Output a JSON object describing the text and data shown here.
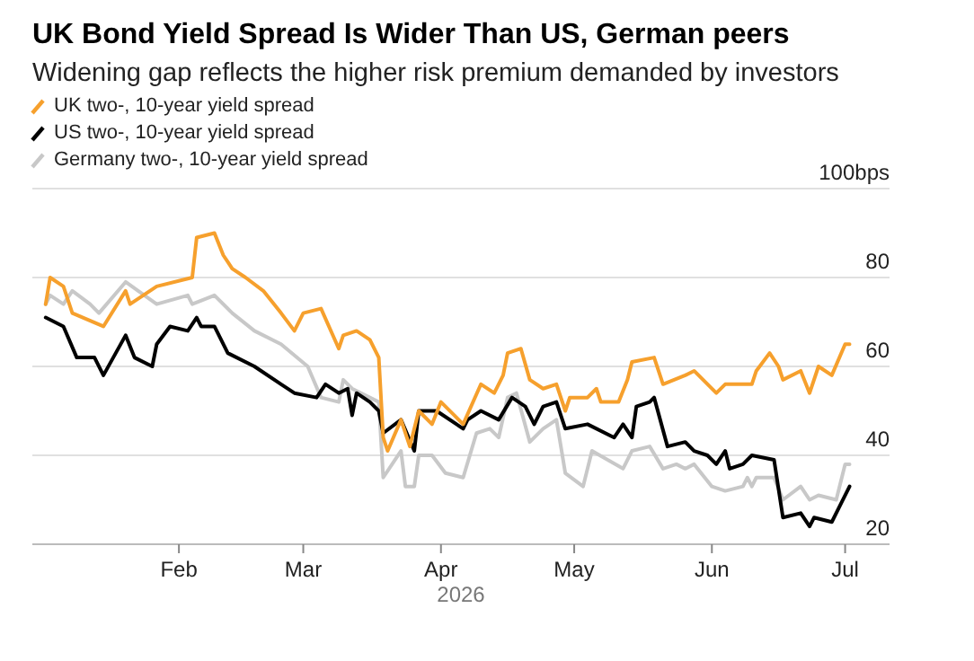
{
  "chart_data": {
    "type": "line",
    "title": "UK Bond Yield Spread Is Wider Than US, German peers",
    "subtitle": "Widening gap reflects the higher risk premium demanded by investors",
    "xlabel": "2026",
    "xlim": [
      "2025-12-30",
      "2026-07-11"
    ],
    "xticks": [
      {
        "value": "2026-02-01",
        "label": "Feb"
      },
      {
        "value": "2026-03-01",
        "label": "Mar"
      },
      {
        "value": "2026-04-01",
        "label": "Apr"
      },
      {
        "value": "2026-05-01",
        "label": "May"
      },
      {
        "value": "2026-06-01",
        "label": "Jun"
      },
      {
        "value": "2026-07-01",
        "label": "Jul"
      }
    ],
    "ylim": [
      20,
      100
    ],
    "yticks": [
      20,
      40,
      60,
      80,
      {
        "value": 100,
        "label": "100bps"
      }
    ],
    "grid": "y",
    "legend": "top left",
    "series": [
      {
        "name": "UK two-, 10-year yield spread",
        "color": "#f6a02d",
        "x": [
          "2026-01-02",
          "2026-01-03",
          "2026-01-06",
          "2026-01-08",
          "2026-01-15",
          "2026-01-20",
          "2026-01-21",
          "2026-01-27",
          "2026-02-04",
          "2026-02-05",
          "2026-02-09",
          "2026-02-11",
          "2026-02-13",
          "2026-02-16",
          "2026-02-20",
          "2026-02-24",
          "2026-02-27",
          "2026-03-01",
          "2026-03-05",
          "2026-03-09",
          "2026-03-10",
          "2026-03-13",
          "2026-03-16",
          "2026-03-18",
          "2026-03-19",
          "2026-03-20",
          "2026-03-23",
          "2026-03-25",
          "2026-03-27",
          "2026-03-30",
          "2026-04-01",
          "2026-04-04",
          "2026-04-06",
          "2026-04-10",
          "2026-04-13",
          "2026-04-15",
          "2026-04-16",
          "2026-04-19",
          "2026-04-21",
          "2026-04-24",
          "2026-04-27",
          "2026-04-29",
          "2026-04-30",
          "2026-05-04",
          "2026-05-06",
          "2026-05-07",
          "2026-05-11",
          "2026-05-13",
          "2026-05-14",
          "2026-05-19",
          "2026-05-21",
          "2026-05-26",
          "2026-05-28",
          "2026-06-02",
          "2026-06-04",
          "2026-06-10",
          "2026-06-11",
          "2026-06-14",
          "2026-06-16",
          "2026-06-17",
          "2026-06-21",
          "2026-06-23",
          "2026-06-25",
          "2026-06-28",
          "2026-07-01",
          "2026-07-02"
        ],
        "values": [
          74,
          80,
          78,
          72,
          69,
          77,
          74,
          78,
          80,
          89,
          90,
          85,
          82,
          80,
          77,
          72,
          68,
          72,
          73,
          64,
          67,
          68,
          66,
          62,
          44,
          41,
          48,
          42,
          50,
          47,
          52,
          49,
          47,
          56,
          54,
          58,
          63,
          64,
          57,
          55,
          56,
          50,
          53,
          53,
          55,
          52,
          52,
          57,
          61,
          62,
          56,
          58,
          59,
          54,
          56,
          56,
          59,
          63,
          60,
          57,
          59,
          54,
          60,
          58,
          65,
          65
        ]
      },
      {
        "name": "US two-, 10-year yield spread",
        "color": "#000000",
        "x": [
          "2026-01-02",
          "2026-01-06",
          "2026-01-09",
          "2026-01-13",
          "2026-01-15",
          "2026-01-20",
          "2026-01-22",
          "2026-01-26",
          "2026-01-27",
          "2026-01-30",
          "2026-02-03",
          "2026-02-05",
          "2026-02-06",
          "2026-02-09",
          "2026-02-12",
          "2026-02-18",
          "2026-02-24",
          "2026-02-27",
          "2026-03-04",
          "2026-03-06",
          "2026-03-09",
          "2026-03-11",
          "2026-03-12",
          "2026-03-13",
          "2026-03-16",
          "2026-03-18",
          "2026-03-19",
          "2026-03-23",
          "2026-03-26",
          "2026-03-27",
          "2026-03-31",
          "2026-04-06",
          "2026-04-07",
          "2026-04-10",
          "2026-04-14",
          "2026-04-17",
          "2026-04-20",
          "2026-04-22",
          "2026-04-24",
          "2026-04-27",
          "2026-04-29",
          "2026-05-04",
          "2026-05-10",
          "2026-05-12",
          "2026-05-14",
          "2026-05-15",
          "2026-05-18",
          "2026-05-19",
          "2026-05-22",
          "2026-05-26",
          "2026-05-28",
          "2026-05-31",
          "2026-06-02",
          "2026-06-04",
          "2026-06-05",
          "2026-06-08",
          "2026-06-10",
          "2026-06-15",
          "2026-06-17",
          "2026-06-21",
          "2026-06-23",
          "2026-06-24",
          "2026-06-28",
          "2026-06-30",
          "2026-07-02"
        ],
        "values": [
          71,
          69,
          62,
          62,
          58,
          67,
          62,
          60,
          65,
          69,
          68,
          71,
          69,
          69,
          63,
          60,
          56,
          54,
          53,
          56,
          54,
          55,
          49,
          54,
          52,
          50,
          45,
          48,
          41,
          50,
          50,
          46,
          48,
          50,
          48,
          53,
          51,
          47,
          51,
          52,
          46,
          47,
          44,
          47,
          44,
          51,
          52,
          53,
          42,
          43,
          41,
          40,
          38,
          41,
          37,
          38,
          40,
          39,
          26,
          27,
          24,
          26,
          25,
          29,
          33
        ]
      },
      {
        "name": "Germany two-, 10-year yield spread",
        "color": "#c8c8c8",
        "x": [
          "2026-01-02",
          "2026-01-03",
          "2026-01-06",
          "2026-01-08",
          "2026-01-12",
          "2026-01-14",
          "2026-01-20",
          "2026-01-27",
          "2026-02-03",
          "2026-02-04",
          "2026-02-09",
          "2026-02-13",
          "2026-02-18",
          "2026-02-24",
          "2026-03-02",
          "2026-03-05",
          "2026-03-09",
          "2026-03-10",
          "2026-03-12",
          "2026-03-18",
          "2026-03-19",
          "2026-03-23",
          "2026-03-24",
          "2026-03-26",
          "2026-03-27",
          "2026-03-30",
          "2026-04-02",
          "2026-04-06",
          "2026-04-09",
          "2026-04-12",
          "2026-04-14",
          "2026-04-16",
          "2026-04-18",
          "2026-04-21",
          "2026-04-24",
          "2026-04-27",
          "2026-04-29",
          "2026-05-03",
          "2026-05-05",
          "2026-05-12",
          "2026-05-14",
          "2026-05-18",
          "2026-05-21",
          "2026-05-24",
          "2026-05-26",
          "2026-05-28",
          "2026-06-01",
          "2026-06-04",
          "2026-06-08",
          "2026-06-09",
          "2026-06-10",
          "2026-06-11",
          "2026-06-15",
          "2026-06-17",
          "2026-06-21",
          "2026-06-23",
          "2026-06-25",
          "2026-06-29",
          "2026-07-01",
          "2026-07-02"
        ],
        "values": [
          74,
          76,
          74,
          77,
          74,
          72,
          79,
          74,
          76,
          74,
          76,
          72,
          68,
          65,
          60,
          53,
          52,
          57,
          55,
          52,
          35,
          41,
          33,
          33,
          40,
          40,
          36,
          35,
          45,
          46,
          44,
          53,
          54,
          43,
          46,
          48,
          36,
          33,
          41,
          37,
          41,
          42,
          37,
          38,
          37,
          38,
          33,
          32,
          33,
          35,
          33,
          35,
          35,
          30,
          33,
          30,
          31,
          30,
          38,
          38
        ]
      }
    ]
  }
}
